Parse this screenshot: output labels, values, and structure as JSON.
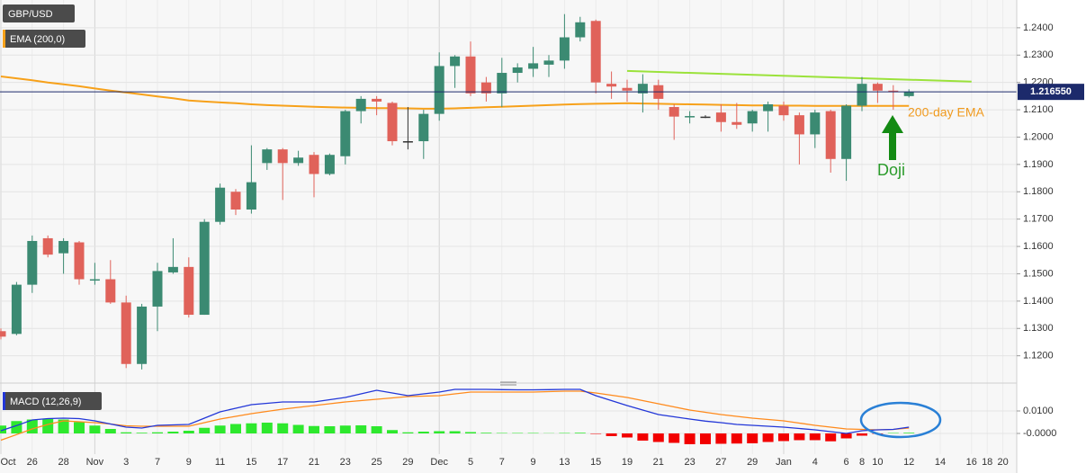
{
  "chart_data": [
    {
      "type": "candlestick",
      "title": "GBP/USD",
      "categories": [
        "Oct",
        null,
        "26",
        null,
        "28",
        null,
        "Nov",
        null,
        "3",
        null,
        "7",
        null,
        "9",
        null,
        "11",
        null,
        "15",
        null,
        "17",
        null,
        "21",
        null,
        "23",
        null,
        "25",
        null,
        "29",
        null,
        "Dec",
        null,
        "5",
        null,
        "7",
        null,
        "9",
        null,
        "13",
        null,
        "15",
        null,
        "19",
        null,
        "21",
        null,
        "23",
        null,
        "27",
        null,
        "29",
        null,
        "Jan",
        null,
        "4",
        null,
        "6",
        "8",
        "10",
        null,
        "12",
        null,
        "14",
        null,
        "16",
        "18",
        "20"
      ],
      "open": [
        1.129,
        1.128,
        1.146,
        1.163,
        1.1575,
        1.1615,
        1.1475,
        1.148,
        1.1395,
        1.117,
        1.138,
        1.1505,
        1.1525,
        1.135,
        1.169,
        1.18,
        1.1735,
        1.1905,
        1.1955,
        1.1905,
        1.1935,
        1.1865,
        1.193,
        1.2095,
        1.214,
        1.2125,
        1.1985,
        1.1985,
        1.2085,
        1.226,
        1.2295,
        1.22,
        1.216,
        1.2235,
        1.225,
        1.2265,
        1.228,
        1.2365,
        1.2425,
        1.2195,
        1.218,
        1.216,
        1.219,
        1.211,
        1.2075,
        1.2075,
        1.209,
        1.2055,
        1.205,
        1.2095,
        1.2115,
        1.208,
        1.201,
        1.2095,
        1.192,
        1.2115,
        1.2195,
        1.217,
        1.215,
        null,
        null,
        null,
        null,
        null,
        null
      ],
      "high": [
        1.13,
        1.147,
        1.164,
        1.164,
        1.163,
        1.162,
        1.154,
        1.155,
        1.142,
        1.139,
        1.154,
        1.163,
        1.156,
        1.17,
        1.183,
        1.181,
        1.197,
        1.196,
        1.196,
        1.195,
        1.1945,
        1.194,
        1.21,
        1.215,
        1.215,
        1.213,
        1.211,
        1.21,
        1.231,
        1.23,
        1.235,
        1.222,
        1.229,
        1.227,
        1.233,
        1.23,
        1.245,
        1.244,
        1.243,
        1.224,
        1.221,
        1.223,
        1.221,
        1.212,
        1.2095,
        1.208,
        1.212,
        1.2125,
        1.21,
        1.213,
        1.213,
        1.209,
        1.21,
        1.21,
        1.212,
        1.222,
        1.22,
        1.219,
        1.2175,
        null,
        null,
        null,
        null,
        null,
        null
      ],
      "low": [
        1.126,
        1.1275,
        1.143,
        1.156,
        1.15,
        1.146,
        1.146,
        1.139,
        1.1155,
        1.115,
        1.129,
        1.15,
        1.134,
        1.135,
        1.168,
        1.1715,
        1.172,
        1.188,
        1.177,
        1.1895,
        1.178,
        1.186,
        1.19,
        1.205,
        1.208,
        1.197,
        1.1955,
        1.192,
        1.206,
        1.218,
        1.215,
        1.213,
        1.211,
        1.22,
        1.222,
        1.222,
        1.225,
        1.235,
        1.216,
        1.214,
        1.213,
        1.209,
        1.21,
        1.199,
        1.205,
        1.207,
        1.202,
        1.203,
        1.202,
        1.202,
        1.206,
        1.19,
        1.196,
        1.187,
        1.184,
        1.2095,
        1.2125,
        1.21,
        1.2145,
        null,
        null,
        null,
        null,
        null,
        null
      ],
      "close": [
        1.127,
        1.146,
        1.162,
        1.157,
        1.162,
        1.148,
        1.148,
        1.1395,
        1.117,
        1.138,
        1.151,
        1.1525,
        1.135,
        1.169,
        1.1815,
        1.1735,
        1.1835,
        1.1955,
        1.1905,
        1.1925,
        1.1865,
        1.1935,
        1.2095,
        1.214,
        1.213,
        1.1985,
        1.1985,
        1.2085,
        1.226,
        1.2295,
        1.216,
        1.216,
        1.2235,
        1.2255,
        1.227,
        1.228,
        1.2365,
        1.242,
        1.22,
        1.2185,
        1.217,
        1.2195,
        1.214,
        1.2075,
        1.2077,
        1.2075,
        1.2055,
        1.2045,
        1.2095,
        1.212,
        1.208,
        1.201,
        1.209,
        1.192,
        1.2115,
        1.2195,
        1.217,
        1.2168,
        1.21655,
        null,
        null,
        null,
        null,
        null,
        null
      ],
      "up_color": "#3b8a72",
      "down_color": "#e0625a",
      "overlays": [
        {
          "name": "EMA (200,0)",
          "color": "#f7a11a",
          "values": [
            1.2222,
            1.2215,
            1.2208,
            1.22,
            1.2193,
            1.2186,
            1.2178,
            1.217,
            1.2163,
            1.2156,
            1.2149,
            1.2142,
            1.2134,
            1.213,
            1.2127,
            1.2124,
            1.212,
            1.2117,
            1.2115,
            1.2113,
            1.2111,
            1.2109,
            1.2108,
            1.2107,
            1.2106,
            1.2106,
            1.2105,
            1.2104,
            1.2104,
            1.2105,
            1.2107,
            1.2109,
            1.2111,
            1.2113,
            1.2115,
            1.2117,
            1.2119,
            1.2121,
            1.2122,
            1.2123,
            1.2124,
            1.2123,
            1.2122,
            1.2121,
            1.212,
            1.2119,
            1.2118,
            1.2117,
            1.2116,
            1.2116,
            1.2115,
            1.2115,
            1.2114,
            1.2114,
            1.2114,
            1.2114,
            1.2114,
            1.2114,
            1.2114,
            null,
            null,
            null,
            null,
            null,
            null
          ]
        }
      ],
      "trendline": {
        "x": [
          40,
          62
        ],
        "y": [
          1.2242,
          1.2203
        ],
        "color": "#9be23b"
      },
      "last_price": {
        "value": 1.21655,
        "label": "1.216550",
        "color": "#1c2a6b"
      },
      "annotations": [
        "200-day EMA",
        "Doji"
      ],
      "ylim": [
        1.111,
        1.2495
      ],
      "yticks": [
        {
          "value": 1.24,
          "label": "1.2400"
        },
        {
          "value": 1.23,
          "label": "1.2300"
        },
        {
          "value": 1.22,
          "label": "1.2200"
        },
        {
          "value": 1.21,
          "label": "1.2100"
        },
        {
          "value": 1.2,
          "label": "1.2000"
        },
        {
          "value": 1.19,
          "label": "1.1900"
        },
        {
          "value": 1.18,
          "label": "1.1800"
        },
        {
          "value": 1.17,
          "label": "1.1700"
        },
        {
          "value": 1.16,
          "label": "1.1600"
        },
        {
          "value": 1.15,
          "label": "1.1500"
        },
        {
          "value": 1.14,
          "label": "1.1400"
        },
        {
          "value": 1.13,
          "label": "1.1300"
        },
        {
          "value": 1.12,
          "label": "1.1200"
        }
      ],
      "grid": true
    },
    {
      "type": "macd",
      "title": "MACD (12,26,9)",
      "macd": {
        "color": "#2337d8",
        "values": [
          0.0012,
          0.0035,
          0.006,
          0.0066,
          0.0068,
          0.0066,
          0.0056,
          0.0042,
          0.0028,
          0.0024,
          0.0036,
          0.0038,
          0.004,
          0.0068,
          0.0096,
          0.0112,
          0.0128,
          0.0134,
          0.014,
          0.014,
          0.014,
          0.015,
          0.016,
          0.0176,
          0.0192,
          0.018,
          0.0168,
          0.0176,
          0.0184,
          0.0196,
          0.0196,
          0.0196,
          0.0195,
          0.0194,
          0.0194,
          0.0195,
          0.0196,
          0.0196,
          0.0168,
          0.0146,
          0.0124,
          0.0104,
          0.0084,
          0.0074,
          0.0064,
          0.0055,
          0.0048,
          0.004,
          0.0036,
          0.0032,
          0.0028,
          0.0022,
          0.0016,
          0.0008,
          0.0,
          0.0012,
          0.0016,
          0.0018,
          0.0028,
          null,
          null,
          null,
          null,
          null,
          null
        ]
      },
      "signal": {
        "color": "#ff8a1c",
        "values": [
          -0.003,
          -0.0005,
          0.002,
          0.004,
          0.0056,
          0.0052,
          0.0048,
          0.0042,
          0.0034,
          0.0032,
          0.0032,
          0.0032,
          0.0032,
          0.0048,
          0.0064,
          0.0076,
          0.0088,
          0.0098,
          0.0108,
          0.0116,
          0.0124,
          0.0132,
          0.014,
          0.0146,
          0.0152,
          0.0158,
          0.0164,
          0.0166,
          0.0168,
          0.0176,
          0.0184,
          0.0184,
          0.0184,
          0.0184,
          0.0184,
          0.0186,
          0.0188,
          0.0188,
          0.018,
          0.017,
          0.016,
          0.0146,
          0.0132,
          0.0118,
          0.0104,
          0.0094,
          0.0084,
          0.0076,
          0.0068,
          0.0062,
          0.0056,
          0.0046,
          0.0036,
          0.0028,
          0.002,
          0.0018,
          0.0016,
          0.0018,
          0.0024,
          null,
          null,
          null,
          null,
          null,
          null
        ]
      },
      "histogram": {
        "up_color": "#2ee82e",
        "down_color": "#f20000",
        "values": [
          0.0035,
          0.0055,
          0.0062,
          0.0065,
          0.0062,
          0.005,
          0.0035,
          0.002,
          0.0005,
          0.0003,
          0.0005,
          0.0008,
          0.0012,
          0.0025,
          0.0035,
          0.0042,
          0.0045,
          0.0048,
          0.0045,
          0.0038,
          0.0033,
          0.0032,
          0.0035,
          0.0036,
          0.0032,
          0.0015,
          0.0005,
          0.0008,
          0.001,
          0.001,
          0.0006,
          0.0003,
          0.0002,
          0.0002,
          0.0002,
          0.0001,
          0.0002,
          0.0003,
          -0.0002,
          -0.0012,
          -0.0018,
          -0.0032,
          -0.0038,
          -0.0042,
          -0.0048,
          -0.0048,
          -0.0046,
          -0.0045,
          -0.0044,
          -0.0038,
          -0.0034,
          -0.003,
          -0.003,
          -0.0035,
          -0.0022,
          -0.001,
          -0.0002,
          0.0002,
          0.0003,
          null,
          null,
          null,
          null,
          null,
          null
        ]
      },
      "ylim": [
        -0.0092,
        0.02
      ],
      "yticks": [
        {
          "value": 0.01,
          "label": "0.0100"
        },
        {
          "value": 0,
          "label": "-0.0000"
        }
      ]
    }
  ]
}
